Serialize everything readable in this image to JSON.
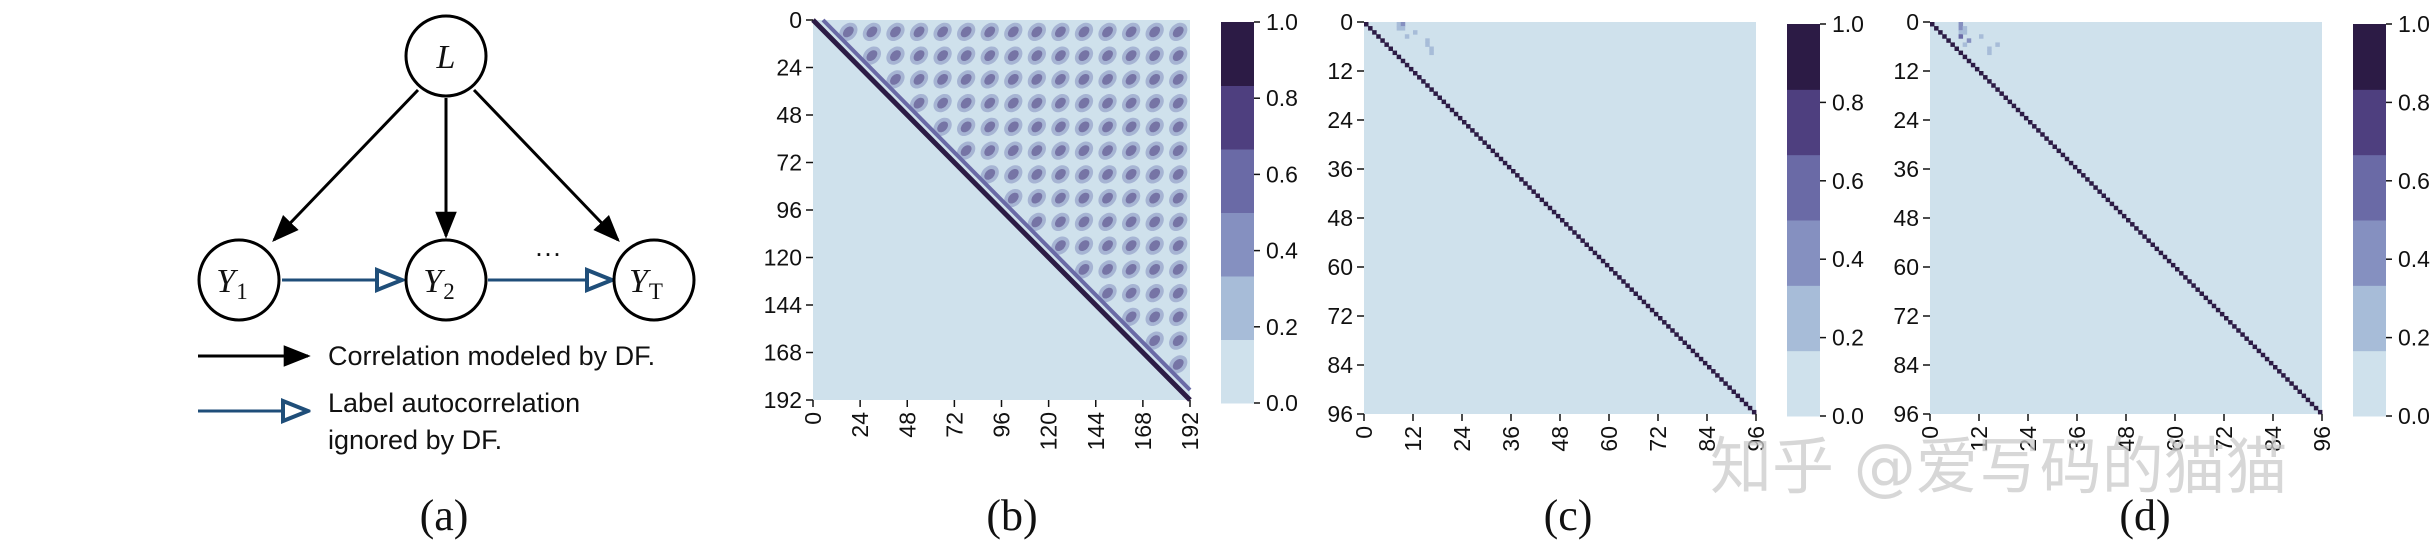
{
  "panel_a": {
    "caption": "(a)",
    "nodes": {
      "latent": "L",
      "y1_base": "Y",
      "y1_sub": "1",
      "y2_base": "Y",
      "y2_sub": "2",
      "yt_base": "Y",
      "yt_sub": "T"
    },
    "ellipsis": "···",
    "legend": {
      "solid_label": "Correlation modeled by DF.",
      "hollow_line1": "Label autocorrelation",
      "hollow_line2": "ignored by DF."
    },
    "colors": {
      "solid_arrow": "#000000",
      "hollow_arrow": "#1f4e79"
    }
  },
  "chart_data": [
    {
      "type": "heatmap",
      "panel_caption": "(b)",
      "size": 192,
      "x_ticks": [
        "0",
        "24",
        "48",
        "72",
        "96",
        "120",
        "144",
        "168",
        "192"
      ],
      "y_ticks": [
        "0",
        "24",
        "48",
        "72",
        "96",
        "120",
        "144",
        "168",
        "192"
      ],
      "pattern": "upper-triangle periodic correlation blobs with strong diagonal band",
      "colorbar": {
        "min": 0.0,
        "max": 1.0,
        "ticks": [
          "0.0",
          "0.2",
          "0.4",
          "0.6",
          "0.8",
          "1.0"
        ]
      },
      "colors": [
        "#cfe1ec",
        "#a7bcd8",
        "#8590c0",
        "#6a6aa6",
        "#4e3f7f",
        "#2c1b45"
      ]
    },
    {
      "type": "heatmap",
      "panel_caption": "(c)",
      "size": 96,
      "x_ticks": [
        "0",
        "12",
        "24",
        "36",
        "48",
        "60",
        "72",
        "84",
        "96"
      ],
      "y_ticks": [
        "0",
        "12",
        "24",
        "36",
        "48",
        "60",
        "72",
        "84",
        "96"
      ],
      "pattern": "identity diagonal with faint values near top-left",
      "colorbar": {
        "min": 0.0,
        "max": 1.0,
        "ticks": [
          "0.0",
          "0.2",
          "0.4",
          "0.6",
          "0.8",
          "1.0"
        ]
      },
      "colors": [
        "#cfe1ec",
        "#a7bcd8",
        "#8590c0",
        "#6a6aa6",
        "#4e3f7f",
        "#2c1b45"
      ]
    },
    {
      "type": "heatmap",
      "panel_caption": "(d)",
      "size": 96,
      "x_ticks": [
        "0",
        "12",
        "24",
        "36",
        "48",
        "60",
        "72",
        "84",
        "96"
      ],
      "y_ticks": [
        "0",
        "12",
        "24",
        "36",
        "48",
        "60",
        "72",
        "84",
        "96"
      ],
      "pattern": "identity diagonal with small off-diagonal values near top-left",
      "colorbar": {
        "min": 0.0,
        "max": 1.0,
        "ticks": [
          "0.0",
          "0.2",
          "0.4",
          "0.6",
          "0.8",
          "1.0"
        ]
      },
      "colors": [
        "#cfe1ec",
        "#a7bcd8",
        "#8590c0",
        "#6a6aa6",
        "#4e3f7f",
        "#2c1b45"
      ]
    }
  ],
  "watermark": {
    "text": "知乎 @爱写码的猫猫"
  }
}
